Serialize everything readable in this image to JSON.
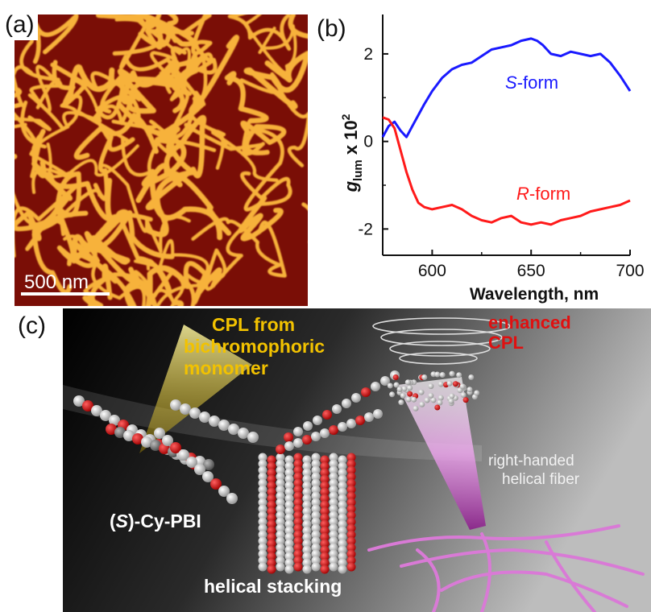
{
  "panels": {
    "a": {
      "label": "(a)",
      "scale_bar": "500 nm"
    },
    "b": {
      "label": "(b)"
    },
    "c": {
      "label": "(c)",
      "callout": [
        "CPL from",
        "bichromophoric",
        "monomer"
      ],
      "enhanced": [
        "enhanced",
        "CPL"
      ],
      "fiber": [
        "right-handed",
        "helical fiber"
      ],
      "monomer_name": "(S)-Cy-PBI",
      "stacking": "helical stacking"
    }
  },
  "colors": {
    "s_form": "#1a1aff",
    "r_form": "#ff1a1a",
    "afm_dark": "#7a0e06",
    "afm_fiber": "#f7b23a",
    "callout": "#f2c200",
    "enhanced": "#e01010",
    "fiber_pink": "#d97ad6"
  },
  "chart_data": {
    "type": "line",
    "xlabel": "Wavelength, nm",
    "ylabel": "g_lum x 10^2",
    "xlim": [
      575,
      700
    ],
    "ylim": [
      -2.6,
      2.9
    ],
    "xticks": [
      600,
      650,
      700
    ],
    "yticks": [
      2,
      0,
      -2
    ],
    "grid": false,
    "series": [
      {
        "name": "S-form",
        "color": "#1a1aff",
        "x": [
          575,
          578,
          581,
          584,
          587,
          590,
          593,
          596,
          600,
          605,
          610,
          615,
          620,
          625,
          630,
          635,
          640,
          645,
          650,
          653,
          656,
          660,
          665,
          670,
          675,
          680,
          685,
          690,
          695,
          700
        ],
        "y": [
          0.1,
          0.35,
          0.45,
          0.25,
          0.1,
          0.35,
          0.6,
          0.85,
          1.15,
          1.45,
          1.65,
          1.75,
          1.8,
          1.95,
          2.1,
          2.15,
          2.2,
          2.3,
          2.35,
          2.3,
          2.2,
          2.0,
          1.95,
          2.05,
          2.0,
          1.95,
          2.0,
          1.8,
          1.5,
          1.15
        ]
      },
      {
        "name": "R-form",
        "color": "#ff1a1a",
        "x": [
          575,
          578,
          581,
          584,
          587,
          590,
          593,
          596,
          600,
          605,
          610,
          615,
          620,
          625,
          630,
          635,
          640,
          645,
          650,
          655,
          660,
          665,
          670,
          675,
          680,
          685,
          690,
          695,
          700
        ],
        "y": [
          0.55,
          0.5,
          0.3,
          -0.2,
          -0.7,
          -1.1,
          -1.4,
          -1.5,
          -1.55,
          -1.5,
          -1.45,
          -1.55,
          -1.7,
          -1.8,
          -1.85,
          -1.75,
          -1.7,
          -1.85,
          -1.9,
          -1.85,
          -1.9,
          -1.8,
          -1.75,
          -1.7,
          -1.6,
          -1.55,
          -1.5,
          -1.45,
          -1.35
        ]
      }
    ]
  }
}
